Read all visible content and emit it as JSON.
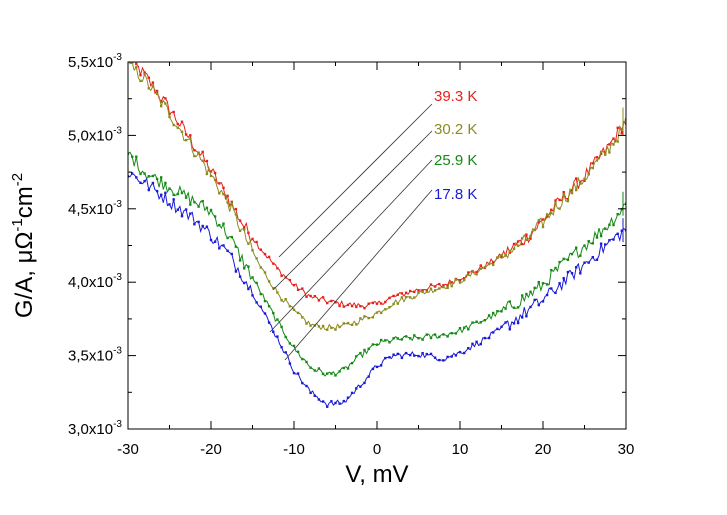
{
  "chart_data": {
    "type": "line",
    "xlabel": "V, mV",
    "ylabel": "G/A, μΩ⁻¹cm⁻²",
    "xlim": [
      -30,
      30
    ],
    "ylim": [
      0.003,
      0.0055
    ],
    "x_ticks": [
      -30,
      -20,
      -10,
      0,
      10,
      20,
      30
    ],
    "y_ticks": [
      {
        "value": 0.003,
        "mantissa": "3,0x10",
        "exp": "-3"
      },
      {
        "value": 0.0035,
        "mantissa": "3,5x10",
        "exp": "-3"
      },
      {
        "value": 0.004,
        "mantissa": "4,0x10",
        "exp": "-3"
      },
      {
        "value": 0.0045,
        "mantissa": "4,5x10",
        "exp": "-3"
      },
      {
        "value": 0.005,
        "mantissa": "5,0x10",
        "exp": "-3"
      },
      {
        "value": 0.0055,
        "mantissa": "5,5x10",
        "exp": "-3"
      }
    ],
    "grid": false,
    "legend_position": "top-right, labels with leader lines",
    "series": [
      {
        "name": "39.3 K",
        "color": "#e8201c",
        "x": [
          -30,
          -28,
          -25,
          -22,
          -20,
          -18,
          -16,
          -14,
          -12,
          -10,
          -8,
          -6,
          -4,
          -2,
          0,
          2,
          5,
          8,
          10,
          12,
          15,
          18,
          20,
          22,
          25,
          28,
          30
        ],
        "y": [
          0.00553,
          0.00541,
          0.00518,
          0.00493,
          0.00476,
          0.00458,
          0.00438,
          0.00423,
          0.00409,
          0.00398,
          0.0039,
          0.00387,
          0.00385,
          0.00384,
          0.00385,
          0.0039,
          0.00395,
          0.00398,
          0.00403,
          0.00408,
          0.00418,
          0.0043,
          0.00442,
          0.00455,
          0.00472,
          0.00493,
          0.0051
        ]
      },
      {
        "name": "30.2 K",
        "color": "#8c8c1e",
        "x": [
          -30,
          -28,
          -25,
          -22,
          -20,
          -18,
          -16,
          -14,
          -12,
          -10,
          -8,
          -6,
          -4,
          -2,
          0,
          2,
          5,
          8,
          10,
          12,
          15,
          18,
          20,
          22,
          25,
          28,
          30
        ],
        "y": [
          0.00548,
          0.00538,
          0.00515,
          0.0049,
          0.00473,
          0.00455,
          0.00432,
          0.0041,
          0.00393,
          0.0038,
          0.00371,
          0.00369,
          0.0037,
          0.00374,
          0.00379,
          0.00386,
          0.00392,
          0.00397,
          0.00401,
          0.00407,
          0.00417,
          0.00429,
          0.00441,
          0.00454,
          0.00471,
          0.00492,
          0.00508
        ]
      },
      {
        "name": "25.9 K",
        "color": "#158a15",
        "x": [
          -30,
          -28,
          -25,
          -22,
          -20,
          -18,
          -16,
          -14,
          -12,
          -10,
          -8,
          -6,
          -4,
          -2,
          0,
          2,
          5,
          8,
          10,
          12,
          15,
          18,
          20,
          22,
          25,
          28,
          30
        ],
        "y": [
          0.00488,
          0.00475,
          0.00465,
          0.00455,
          0.00448,
          0.00433,
          0.00413,
          0.00393,
          0.00373,
          0.00355,
          0.00342,
          0.00337,
          0.0034,
          0.0035,
          0.00358,
          0.00361,
          0.00362,
          0.00364,
          0.00367,
          0.00372,
          0.0038,
          0.0039,
          0.00398,
          0.0041,
          0.00425,
          0.0044,
          0.00453
        ]
      },
      {
        "name": "17.8 K",
        "color": "#1a1ad6",
        "x": [
          -30,
          -28,
          -25,
          -22,
          -20,
          -18,
          -16,
          -14,
          -12,
          -10,
          -8,
          -6,
          -4,
          -2,
          0,
          2,
          5,
          8,
          10,
          12,
          15,
          18,
          20,
          22,
          25,
          28,
          30
        ],
        "y": [
          0.00475,
          0.00468,
          0.00455,
          0.00443,
          0.00432,
          0.0042,
          0.00403,
          0.00383,
          0.00362,
          0.0034,
          0.00325,
          0.00317,
          0.00318,
          0.0033,
          0.00343,
          0.0035,
          0.00351,
          0.00348,
          0.00352,
          0.00358,
          0.00368,
          0.0038,
          0.00388,
          0.00398,
          0.00412,
          0.00427,
          0.00436
        ]
      }
    ]
  }
}
